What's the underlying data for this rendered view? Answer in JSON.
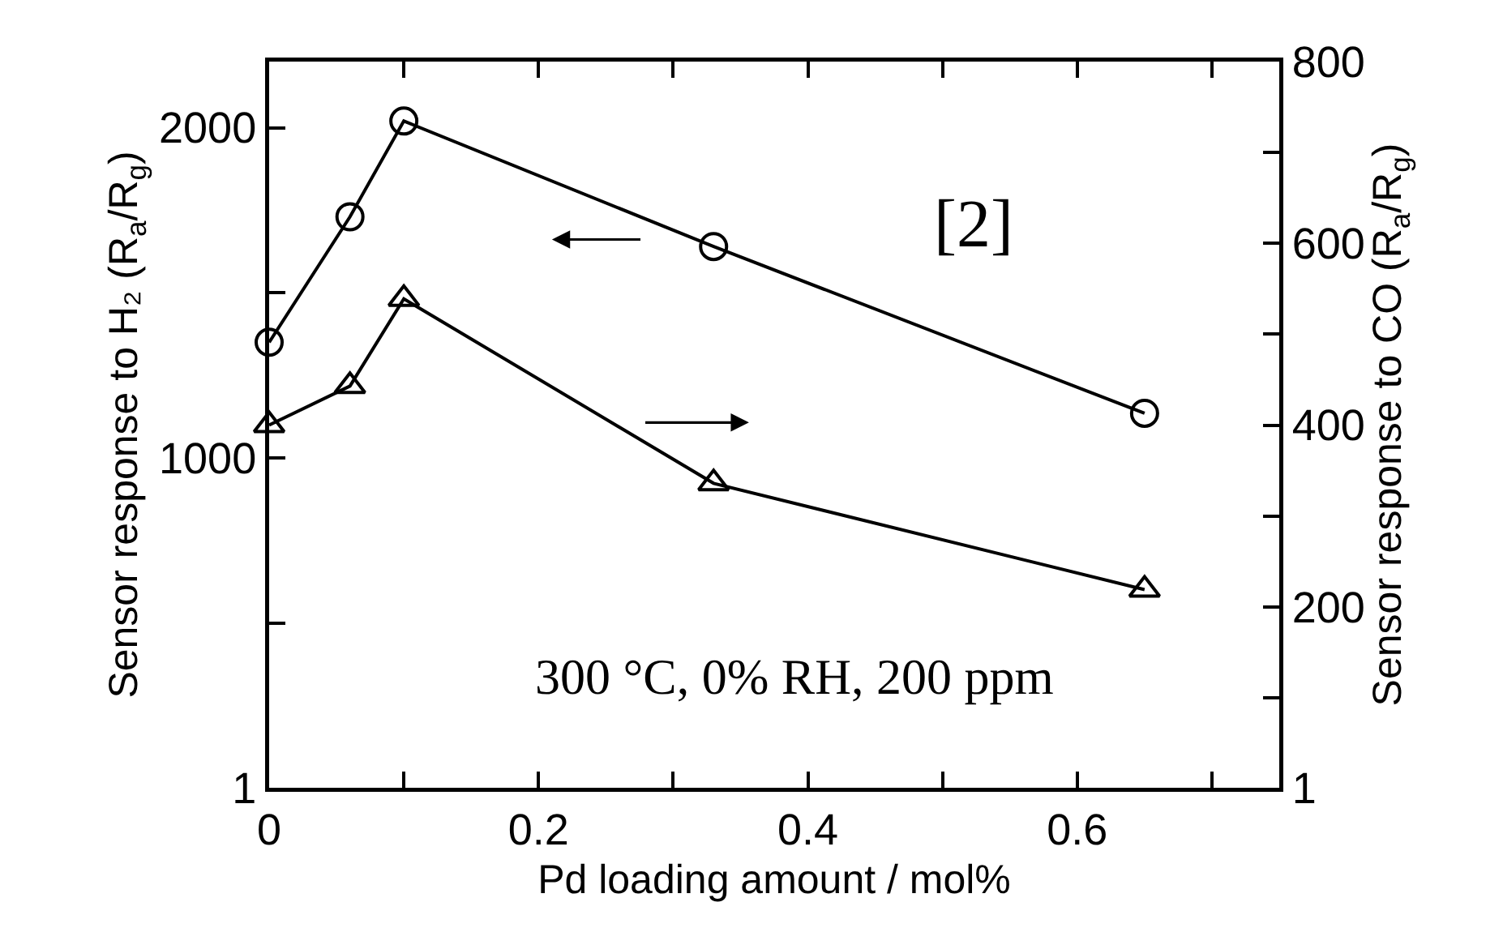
{
  "chart_data": {
    "type": "line",
    "xlabel": "Pd loading amount / mol%",
    "ylabel": "Sensor response to H₂ (R$_{a}$/R$_{g}$)",
    "y2label": "Sensor response to CO (R$_{a}$/R$_{g}$)",
    "x": [
      0,
      0.06,
      0.1,
      0.33,
      0.65
    ],
    "series": [
      {
        "color": "#000000",
        "marker": "circle",
        "values": [
          1350,
          1730,
          2020,
          1640,
          1135
        ]
      },
      {
        "color": "#000000",
        "marker": "triangle",
        "axis": "y2",
        "values": [
          400,
          443,
          539,
          336,
          219
        ]
      }
    ],
    "xlim": [
      0,
      0.75
    ],
    "xticks": [
      0,
      {
        "value": 0.1,
        "label": null
      },
      0.2,
      {
        "value": 0.3,
        "label": null
      },
      0.4,
      {
        "value": 0.5,
        "label": null
      },
      0.6,
      {
        "value": 0.7,
        "label": null
      }
    ],
    "ylim": [
      1,
      2200
    ],
    "yticks": [
      1,
      {
        "value": 500,
        "label": null
      },
      1000,
      {
        "value": 1500,
        "label": null
      },
      2000
    ],
    "y2lim": [
      1,
      800
    ],
    "y2ticks": [
      1,
      {
        "value": 100,
        "label": null
      },
      200,
      {
        "value": 300,
        "label": null
      },
      400,
      {
        "value": 500,
        "label": null
      },
      600,
      {
        "value": 700,
        "label": null
      },
      800
    ],
    "annotations": [
      "[2]",
      "300 °C, 0% RH, 200 ppm"
    ],
    "grid": false,
    "line_style": "solid"
  }
}
